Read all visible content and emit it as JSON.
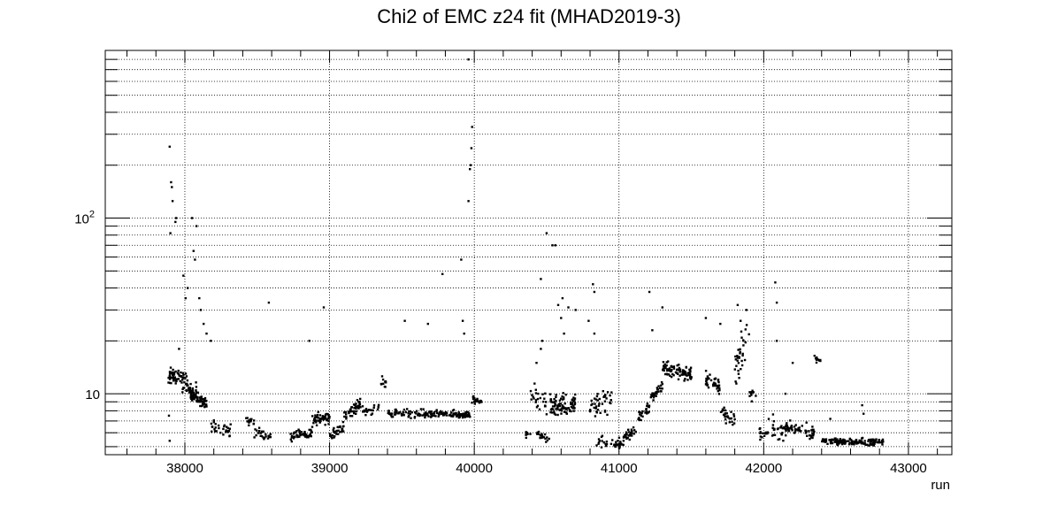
{
  "chart_data": {
    "type": "scatter",
    "title": "Chi2 of EMC z24 fit (MHAD2019-3)",
    "xlabel": "run",
    "ylabel": "",
    "xlim": [
      37450,
      43300
    ],
    "ylim": [
      4.5,
      900
    ],
    "y_scale": "log",
    "grid": true,
    "x_ticks": [
      38000,
      39000,
      40000,
      41000,
      42000,
      43000
    ],
    "x_tick_labels": [
      "38000",
      "39000",
      "40000",
      "41000",
      "42000",
      "43000"
    ],
    "y_major_ticks": [
      10,
      100
    ],
    "y_tick_labels": [
      "10",
      "10^2"
    ],
    "marker_color": "#000000",
    "segments": [
      {
        "x": [
          37880,
          37950
        ],
        "y": [
          12.5,
          12.5
        ],
        "spread": 0.1,
        "n": 35
      },
      {
        "x": [
          37950,
          38080
        ],
        "y": [
          12.5,
          10.0
        ],
        "spread": 0.12,
        "n": 60
      },
      {
        "x": [
          38040,
          38150
        ],
        "y": [
          9.8,
          8.8
        ],
        "spread": 0.07,
        "n": 60
      },
      {
        "x": [
          38180,
          38320
        ],
        "y": [
          6.6,
          6.2
        ],
        "spread": 0.07,
        "n": 30
      },
      {
        "x": [
          38420,
          38480
        ],
        "y": [
          7.2,
          6.8
        ],
        "spread": 0.08,
        "n": 15
      },
      {
        "x": [
          38480,
          38600
        ],
        "y": [
          6.0,
          5.7
        ],
        "spread": 0.07,
        "n": 25
      },
      {
        "x": [
          38730,
          38880
        ],
        "y": [
          5.8,
          6.0
        ],
        "spread": 0.07,
        "n": 50
      },
      {
        "x": [
          38880,
          39000
        ],
        "y": [
          7.0,
          7.4
        ],
        "spread": 0.07,
        "n": 55
      },
      {
        "x": [
          39000,
          39100
        ],
        "y": [
          5.8,
          6.5
        ],
        "spread": 0.07,
        "n": 30
      },
      {
        "x": [
          39100,
          39230
        ],
        "y": [
          7.5,
          9.0
        ],
        "spread": 0.08,
        "n": 45
      },
      {
        "x": [
          39230,
          39340
        ],
        "y": [
          7.8,
          8.2
        ],
        "spread": 0.06,
        "n": 25
      },
      {
        "x": [
          39340,
          39390
        ],
        "y": [
          11.0,
          12.0
        ],
        "spread": 0.08,
        "n": 10
      },
      {
        "x": [
          39400,
          39980
        ],
        "y": [
          7.7,
          7.6
        ],
        "spread": 0.05,
        "n": 170
      },
      {
        "x": [
          39980,
          40050
        ],
        "y": [
          9.2,
          9.2
        ],
        "spread": 0.05,
        "n": 25
      },
      {
        "x": [
          40350,
          40390
        ],
        "y": [
          5.8,
          6.2
        ],
        "spread": 0.05,
        "n": 8
      },
      {
        "x": [
          40390,
          40500
        ],
        "y": [
          10.0,
          8.5
        ],
        "spread": 0.15,
        "n": 25
      },
      {
        "x": [
          40430,
          40520
        ],
        "y": [
          5.8,
          5.6
        ],
        "spread": 0.05,
        "n": 20
      },
      {
        "x": [
          40520,
          40700
        ],
        "y": [
          8.5,
          8.8
        ],
        "spread": 0.12,
        "n": 90
      },
      {
        "x": [
          40800,
          40950
        ],
        "y": [
          8.5,
          9.0
        ],
        "spread": 0.15,
        "n": 40
      },
      {
        "x": [
          40840,
          40920
        ],
        "y": [
          5.5,
          5.3
        ],
        "spread": 0.07,
        "n": 15
      },
      {
        "x": [
          40930,
          41000
        ],
        "y": [
          5.1,
          5.2
        ],
        "spread": 0.05,
        "n": 12
      },
      {
        "x": [
          41000,
          41120
        ],
        "y": [
          5.2,
          6.5
        ],
        "spread": 0.08,
        "n": 40
      },
      {
        "x": [
          41120,
          41220
        ],
        "y": [
          7.2,
          8.5
        ],
        "spread": 0.08,
        "n": 25
      },
      {
        "x": [
          41220,
          41300
        ],
        "y": [
          9.5,
          11.0
        ],
        "spread": 0.08,
        "n": 30
      },
      {
        "x": [
          41300,
          41500
        ],
        "y": [
          14.0,
          13.0
        ],
        "spread": 0.1,
        "n": 90
      },
      {
        "x": [
          41600,
          41700
        ],
        "y": [
          12.0,
          11.0
        ],
        "spread": 0.1,
        "n": 40
      },
      {
        "x": [
          41700,
          41800
        ],
        "y": [
          8.0,
          7.0
        ],
        "spread": 0.12,
        "n": 30
      },
      {
        "x": [
          41800,
          41900
        ],
        "y": [
          14.0,
          22.0
        ],
        "spread": 0.25,
        "n": 35
      },
      {
        "x": [
          41900,
          41950
        ],
        "y": [
          10.0,
          9.5
        ],
        "spread": 0.08,
        "n": 12
      },
      {
        "x": [
          41960,
          42030
        ],
        "y": [
          6.0,
          5.8
        ],
        "spread": 0.06,
        "n": 15
      },
      {
        "x": [
          42030,
          42150
        ],
        "y": [
          6.5,
          6.0
        ],
        "spread": 0.12,
        "n": 25
      },
      {
        "x": [
          42150,
          42350
        ],
        "y": [
          6.4,
          6.0
        ],
        "spread": 0.08,
        "n": 60
      },
      {
        "x": [
          42350,
          42400
        ],
        "y": [
          16.0,
          15.5
        ],
        "spread": 0.04,
        "n": 12
      },
      {
        "x": [
          42400,
          42830
        ],
        "y": [
          5.4,
          5.3
        ],
        "spread": 0.04,
        "n": 150
      }
    ],
    "outliers": [
      [
        37895,
        255
      ],
      [
        37905,
        160
      ],
      [
        37910,
        150
      ],
      [
        37915,
        125
      ],
      [
        37900,
        82
      ],
      [
        37935,
        95
      ],
      [
        37940,
        100
      ],
      [
        38050,
        100
      ],
      [
        38080,
        90
      ],
      [
        38060,
        65
      ],
      [
        38070,
        58
      ],
      [
        37990,
        47
      ],
      [
        38020,
        40
      ],
      [
        38005,
        35
      ],
      [
        38100,
        35
      ],
      [
        38110,
        30
      ],
      [
        38130,
        25
      ],
      [
        38150,
        22
      ],
      [
        38180,
        20
      ],
      [
        37960,
        18
      ],
      [
        37890,
        7.5
      ],
      [
        37895,
        5.4
      ],
      [
        38580,
        33
      ],
      [
        38960,
        31
      ],
      [
        38860,
        20
      ],
      [
        39520,
        26
      ],
      [
        39680,
        25
      ],
      [
        39780,
        48
      ],
      [
        39920,
        26
      ],
      [
        39930,
        22
      ],
      [
        39910,
        58
      ],
      [
        39960,
        125
      ],
      [
        39970,
        190
      ],
      [
        39975,
        200
      ],
      [
        39980,
        250
      ],
      [
        39985,
        330
      ],
      [
        39960,
        800
      ],
      [
        40460,
        45
      ],
      [
        40500,
        82
      ],
      [
        40540,
        70
      ],
      [
        40560,
        70
      ],
      [
        40430,
        15
      ],
      [
        40460,
        18
      ],
      [
        40470,
        20
      ],
      [
        40580,
        32
      ],
      [
        40600,
        27
      ],
      [
        40610,
        35
      ],
      [
        40620,
        22
      ],
      [
        40650,
        31
      ],
      [
        40820,
        42
      ],
      [
        40830,
        38
      ],
      [
        40700,
        30
      ],
      [
        40790,
        26
      ],
      [
        40830,
        22
      ],
      [
        41210,
        38
      ],
      [
        41300,
        31
      ],
      [
        41230,
        23
      ],
      [
        41600,
        27
      ],
      [
        41700,
        25
      ],
      [
        41820,
        32
      ],
      [
        41840,
        26
      ],
      [
        41880,
        30
      ],
      [
        42080,
        43
      ],
      [
        42090,
        33
      ],
      [
        42090,
        20
      ],
      [
        42200,
        15
      ],
      [
        42150,
        10
      ],
      [
        42460,
        7.2
      ],
      [
        42680,
        8.6
      ],
      [
        42690,
        7.7
      ]
    ]
  }
}
